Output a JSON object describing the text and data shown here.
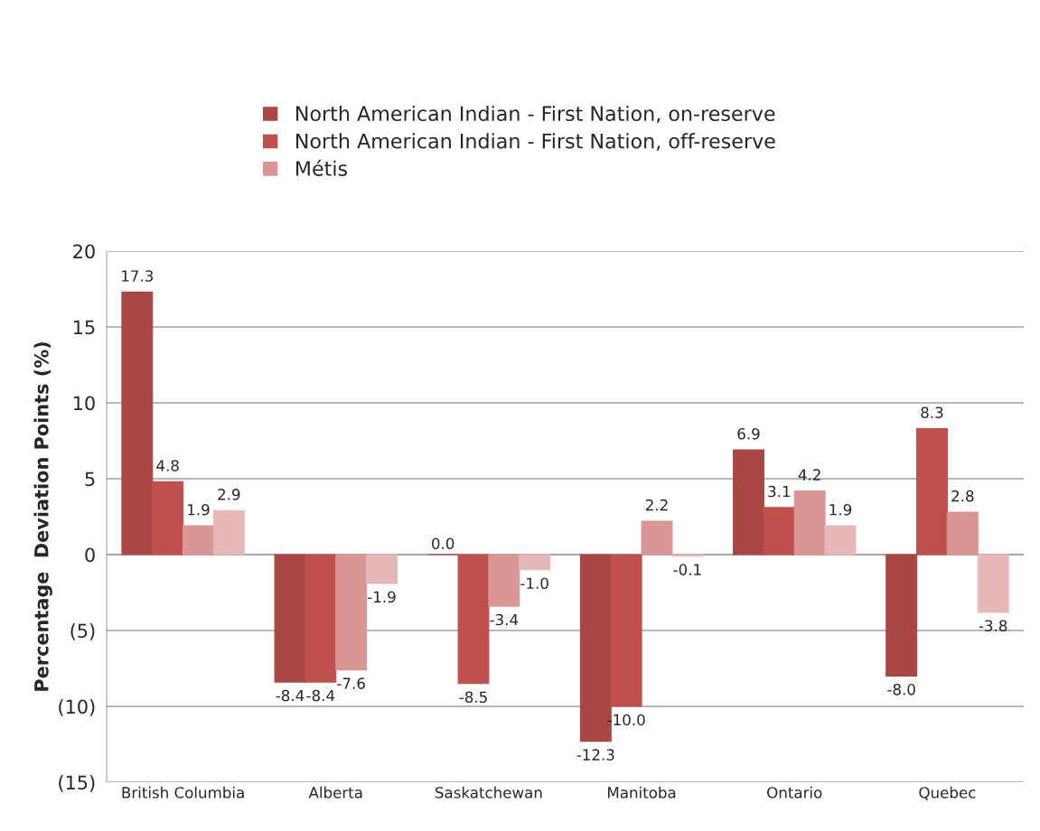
{
  "chart_data": {
    "type": "bar",
    "categories": [
      "British Columbia",
      "Alberta",
      "Saskatchewan",
      "Manitoba",
      "Ontario",
      "Quebec"
    ],
    "ylabel": "Percentage  Deviation Points (%)",
    "series": [
      {
        "name": "North American Indian - First Nation, on-reserve",
        "color": "#a94745",
        "values": [
          17.3,
          -8.4,
          0.0,
          -12.3,
          6.9,
          -8.0
        ],
        "value_labels": [
          "17.3",
          "-8.4",
          "0.0",
          "-12.3",
          "6.9",
          "-8.0"
        ]
      },
      {
        "name": "North American Indian - First Nation, off-reserve",
        "color": "#c0504d",
        "values": [
          4.8,
          -8.4,
          -8.5,
          -10.0,
          3.1,
          8.3
        ],
        "value_labels": [
          "4.8",
          "-8.4",
          "-8.5",
          "-10.0",
          "3.1",
          "8.3"
        ]
      },
      {
        "name": "Métis",
        "color": "#d99694",
        "values": [
          1.9,
          -7.6,
          -3.4,
          2.2,
          4.2,
          2.8
        ],
        "value_labels": [
          "1.9",
          "-7.6",
          "-3.4",
          "2.2",
          "4.2",
          "2.8"
        ]
      },
      {
        "color": "#e6b9b8",
        "values": [
          2.9,
          -1.9,
          -1.0,
          -0.1,
          1.9,
          -3.8
        ],
        "value_labels": [
          "2.9",
          "-1.9",
          "-1.0",
          "-0.1",
          "1.9",
          "-3.8"
        ]
      }
    ],
    "ylim": [
      -15,
      20
    ],
    "yticks": [
      {
        "value": -15,
        "label": "(15)"
      },
      {
        "value": -10,
        "label": "(10)"
      },
      {
        "value": -5,
        "label": "(5)"
      },
      0,
      5,
      10,
      15,
      20
    ],
    "grid": "y",
    "legend": "top"
  }
}
